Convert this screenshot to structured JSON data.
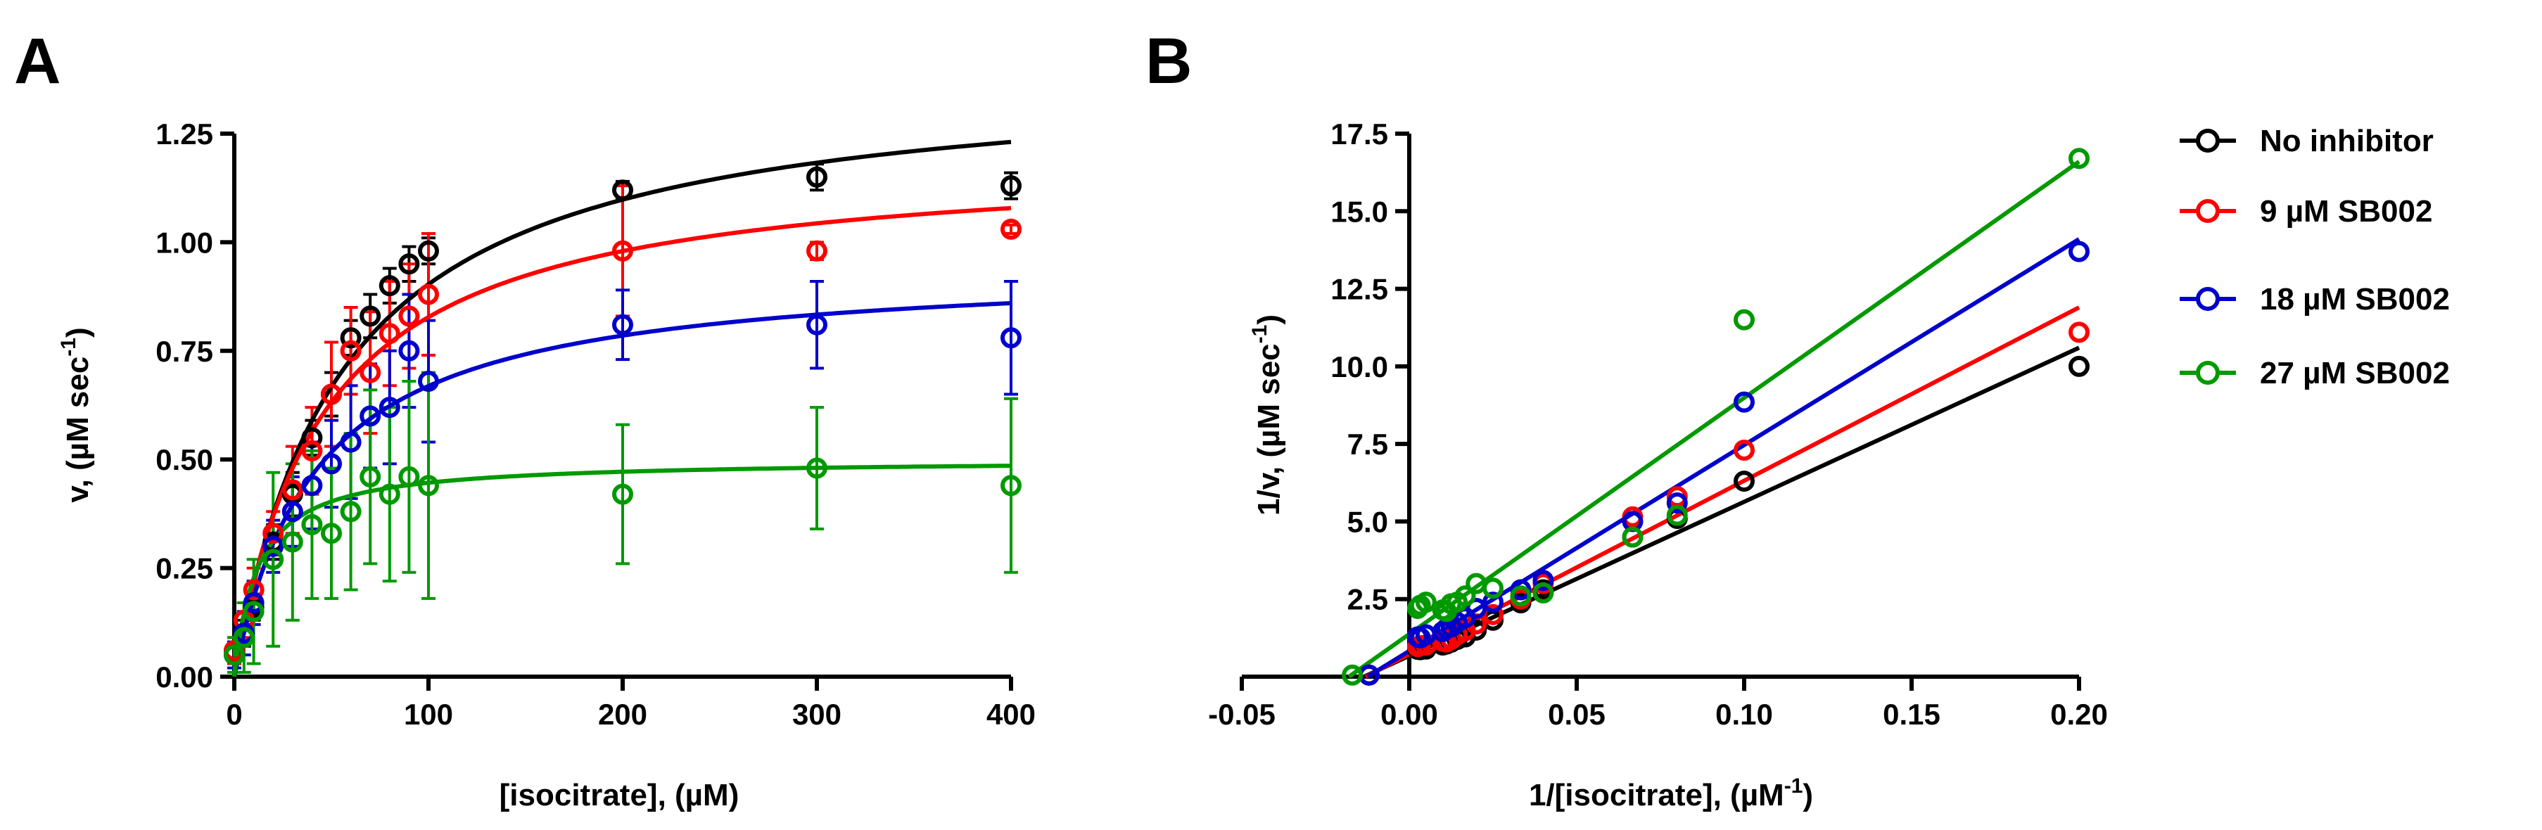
{
  "figure": {
    "panels": [
      "A",
      "B"
    ],
    "legend": {
      "placement": "right",
      "entries": [
        {
          "label": "No inhibitor",
          "color": "#000000"
        },
        {
          "label": "9 µM SB002",
          "color": "#ff0000"
        },
        {
          "label": "18 µM SB002",
          "color": "#0000cc"
        },
        {
          "label": "27 µM SB002",
          "color": "#009900"
        }
      ]
    }
  },
  "chart_data": [
    {
      "panel": "A",
      "type": "scatter",
      "title": "",
      "xlabel": "[isocitrate], (µM)",
      "ylabel_main": "v, (µM sec",
      "ylabel_sup": "-1",
      "ylabel_close": ")",
      "xlim": [
        0,
        400
      ],
      "ylim": [
        0,
        1.25
      ],
      "xticks": [
        0,
        100,
        200,
        300,
        400
      ],
      "xtick_labels": [
        "0",
        "100",
        "200",
        "300",
        "400"
      ],
      "yticks": [
        0,
        0.25,
        0.5,
        0.75,
        1.0,
        1.25
      ],
      "ytick_labels": [
        "0.00",
        "0.25",
        "0.50",
        "0.75",
        "1.00",
        "1.25"
      ],
      "x": [
        0,
        5,
        10,
        20,
        30,
        40,
        50,
        60,
        70,
        80,
        90,
        100,
        200,
        300,
        400
      ],
      "series": [
        {
          "name": "No inhibitor",
          "color": "#000000",
          "y": [
            0.06,
            0.1,
            0.16,
            0.31,
            0.42,
            0.55,
            0.65,
            0.78,
            0.83,
            0.9,
            0.95,
            0.98,
            1.12,
            1.15,
            1.13
          ],
          "err": [
            0.02,
            0.03,
            0.03,
            0.04,
            0.05,
            0.04,
            0.05,
            0.04,
            0.05,
            0.04,
            0.04,
            0.03,
            0.02,
            0.03,
            0.03
          ],
          "fit": {
            "model": "michaelis-menten",
            "vmax": 1.4,
            "km": 55
          }
        },
        {
          "name": "9 µM SB002",
          "color": "#ff0000",
          "y": [
            0.06,
            0.13,
            0.2,
            0.33,
            0.43,
            0.52,
            0.65,
            0.75,
            0.7,
            0.79,
            0.83,
            0.88,
            0.98,
            0.98,
            1.03
          ],
          "err": [
            0.03,
            0.04,
            0.05,
            0.05,
            0.1,
            0.1,
            0.12,
            0.1,
            0.14,
            0.12,
            0.12,
            0.14,
            0.15,
            0.02,
            0.01
          ],
          "fit": {
            "model": "michaelis-menten",
            "vmax": 1.2,
            "km": 45
          }
        },
        {
          "name": "18 µM SB002",
          "color": "#0000cc",
          "y": [
            0.05,
            0.1,
            0.17,
            0.3,
            0.38,
            0.44,
            0.49,
            0.54,
            0.6,
            0.62,
            0.75,
            0.68,
            0.81,
            0.81,
            0.78
          ],
          "err": [
            0.03,
            0.05,
            0.05,
            0.06,
            0.08,
            0.1,
            0.1,
            0.13,
            0.12,
            0.13,
            0.13,
            0.14,
            0.08,
            0.1,
            0.13
          ],
          "fit": {
            "model": "michaelis-menten",
            "vmax": 0.95,
            "km": 42
          }
        },
        {
          "name": "27 µM SB002",
          "color": "#009900",
          "y": [
            0.05,
            0.09,
            0.15,
            0.27,
            0.31,
            0.35,
            0.33,
            0.38,
            0.46,
            0.42,
            0.46,
            0.44,
            0.42,
            0.48,
            0.44
          ],
          "err": [
            0.04,
            0.08,
            0.12,
            0.2,
            0.18,
            0.17,
            0.15,
            0.18,
            0.2,
            0.2,
            0.22,
            0.26,
            0.16,
            0.14,
            0.2
          ],
          "fit": {
            "model": "michaelis-menten",
            "vmax": 0.5,
            "km": 12
          }
        }
      ]
    },
    {
      "panel": "B",
      "type": "scatter",
      "title": "",
      "xlabel_main": "1/[isocitrate], (µM",
      "xlabel_sup": "-1",
      "xlabel_close": ")",
      "ylabel_main": "1/v, (µM sec",
      "ylabel_sup": "-1",
      "ylabel_close": ")",
      "xlim": [
        -0.05,
        0.2
      ],
      "ylim": [
        0,
        17.5
      ],
      "xticks": [
        -0.05,
        0,
        0.05,
        0.1,
        0.15,
        0.2
      ],
      "xtick_labels": [
        "-0.05",
        "0.00",
        "0.05",
        "0.10",
        "0.15",
        "0.20"
      ],
      "yticks": [
        2.5,
        5.0,
        7.5,
        10.0,
        12.5,
        15.0,
        17.5
      ],
      "ytick_labels": [
        "2.5",
        "5.0",
        "7.5",
        "10.0",
        "12.5",
        "15.0",
        "17.5"
      ],
      "x": [
        0.0025,
        0.0033,
        0.005,
        0.01,
        0.0111,
        0.0125,
        0.0143,
        0.0167,
        0.02,
        0.025,
        0.0333,
        0.04,
        0.0667,
        0.08,
        0.1,
        0.2
      ],
      "series": [
        {
          "name": "No inhibitor",
          "color": "#000000",
          "y": [
            0.88,
            0.87,
            0.89,
            1.02,
            1.05,
            1.11,
            1.2,
            1.28,
            1.5,
            1.82,
            2.38,
            2.8,
            4.5,
            5.1,
            6.3,
            10.0
          ],
          "line": {
            "x0": -0.0135,
            "x1": 0.2,
            "y0": 0,
            "y1": 10.6
          },
          "extra_points": [
            {
              "x": -0.012,
              "y": 0.05
            }
          ]
        },
        {
          "name": "9 µM SB002",
          "color": "#ff0000",
          "y": [
            0.97,
            1.0,
            1.02,
            1.14,
            1.12,
            1.2,
            1.35,
            1.48,
            1.7,
            2.0,
            2.5,
            3.0,
            5.15,
            5.8,
            7.3,
            11.1
          ],
          "line": {
            "x0": -0.013,
            "x1": 0.2,
            "y0": 0,
            "y1": 11.9
          },
          "extra_points": [
            {
              "x": -0.012,
              "y": 0.05
            }
          ]
        },
        {
          "name": "18 µM SB002",
          "color": "#0000cc",
          "y": [
            1.28,
            1.25,
            1.35,
            1.45,
            1.55,
            1.6,
            1.75,
            1.9,
            2.2,
            2.4,
            2.8,
            3.1,
            5.0,
            5.6,
            8.85,
            13.7
          ],
          "line": {
            "x0": -0.0125,
            "x1": 0.2,
            "y0": 0,
            "y1": 14.1
          },
          "extra_points": [
            {
              "x": -0.012,
              "y": 0.05
            }
          ]
        },
        {
          "name": "27 µM SB002",
          "color": "#009900",
          "y": [
            2.2,
            2.3,
            2.4,
            2.15,
            2.1,
            2.35,
            2.4,
            2.6,
            3.0,
            2.85,
            2.6,
            2.7,
            4.5,
            5.2,
            11.5,
            16.7
          ],
          "line": {
            "x0": -0.018,
            "x1": 0.2,
            "y0": 0,
            "y1": 16.6
          },
          "extra_points": [
            {
              "x": -0.017,
              "y": 0.05
            }
          ]
        }
      ]
    }
  ]
}
